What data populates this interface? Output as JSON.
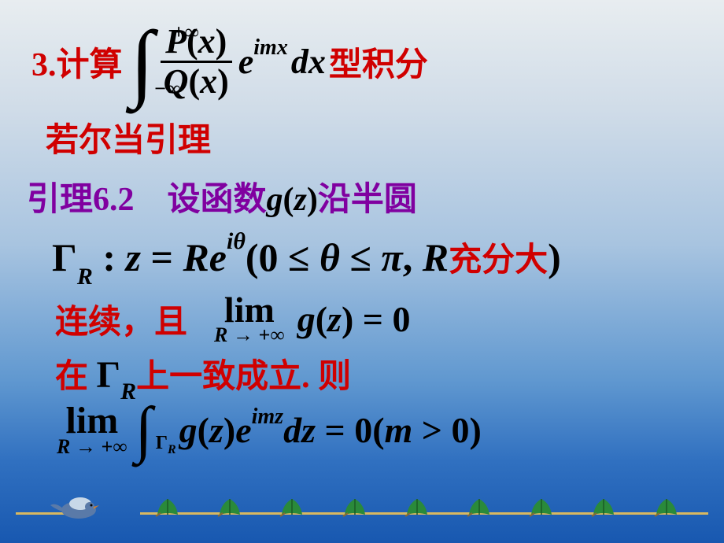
{
  "title_prefix": "3.计算",
  "integral": {
    "upper": "+∞",
    "lower": "−∞",
    "num_P": "P",
    "num_x1": "(",
    "num_x2": "x",
    "num_x3": ")",
    "den_Q": "Q",
    "den_x1": "(",
    "den_x2": "x",
    "den_x3": ")",
    "e": "e",
    "exp": "imx",
    "dx": "dx"
  },
  "title_suffix": "型积分",
  "line2": "若尔当引理",
  "line3a": "引理6.2",
  "line3b_pre": "设函数",
  "line3b_g": "g",
  "line3b_paren_open": "(",
  "line3b_z": "z",
  "line3b_paren_close": ")",
  "line3b_suf": "沿半圆",
  "line4": {
    "Gamma": "Γ",
    "R": "R",
    "colon": " : ",
    "z": "z",
    "eq": " = ",
    "Re": "Re",
    "exp": "iθ",
    "open": "(0 ≤ ",
    "theta": "θ",
    "mid": " ≤ ",
    "pi": "π",
    "comma": ", ",
    "Rvar": "R",
    "suf": "充分大",
    "close": ")"
  },
  "line5a": "连续，且",
  "lim": {
    "lim": "lim",
    "sub": "R → +∞"
  },
  "line5b": {
    "g": "g",
    "open": "(",
    "z": "z",
    "close": ")",
    "eq": " = 0"
  },
  "line6a": "在 ",
  "line6_Gamma": "Γ",
  "line6_R": "R",
  "line6b": "上一致成立. 则",
  "line7": {
    "int_sub_G": "Γ",
    "int_sub_R": "R",
    "g": "g",
    "open": "(",
    "z": "z",
    "close": ")",
    "e": "e",
    "exp": "imz",
    "dz": "dz",
    "eq": " = 0(",
    "m": "m",
    "gt": " > 0)"
  },
  "colors": {
    "red": "#d00000",
    "purple": "#8000a0",
    "black": "#000000",
    "leaf": "#2a8a3a",
    "line": "#d8b860",
    "bird_body": "#5a7aa8",
    "bird_wing": "#c8d8e8"
  },
  "leaf_positions_pct": [
    20,
    29,
    38,
    47,
    56,
    65,
    74,
    83,
    92
  ]
}
